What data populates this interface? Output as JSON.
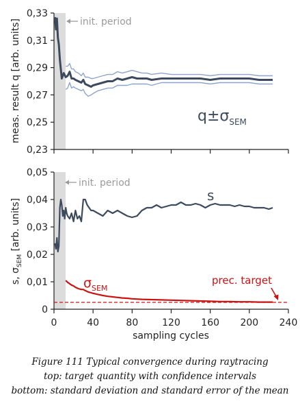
{
  "chart_data": [
    {
      "type": "line",
      "ylabel": "meas. result q [arb. units]",
      "xlim": [
        0,
        240
      ],
      "ylim": [
        0.23,
        0.33
      ],
      "x_ticks": [
        0,
        40,
        80,
        120,
        160,
        200,
        240
      ],
      "y_ticks": [
        0.23,
        0.25,
        0.27,
        0.29,
        0.31,
        0.33
      ],
      "y_tick_labels": [
        "0,23",
        "0,25",
        "0,27",
        "0,29",
        "0,31",
        "0,33"
      ],
      "shaded_region": {
        "x": [
          0,
          12
        ],
        "label": "init. period"
      },
      "series_label": "q±σSEM",
      "series_label_parts": {
        "base": "q±σ",
        "sub": "SEM"
      },
      "series": [
        {
          "role": "mean",
          "color": "#3d4a5e",
          "x": [
            1,
            2,
            3,
            4,
            5,
            6,
            7,
            8,
            10,
            12,
            14,
            16,
            18,
            20,
            22,
            25,
            28,
            30,
            32,
            35,
            38,
            40,
            45,
            50,
            55,
            60,
            65,
            70,
            75,
            80,
            85,
            90,
            95,
            100,
            110,
            120,
            130,
            140,
            150,
            160,
            170,
            180,
            190,
            200,
            210,
            220,
            224
          ],
          "y": [
            0.327,
            0.318,
            0.326,
            0.312,
            0.307,
            0.296,
            0.289,
            0.282,
            0.286,
            0.283,
            0.284,
            0.287,
            0.282,
            0.282,
            0.281,
            0.28,
            0.279,
            0.281,
            0.278,
            0.277,
            0.276,
            0.277,
            0.278,
            0.279,
            0.28,
            0.28,
            0.282,
            0.281,
            0.282,
            0.283,
            0.282,
            0.282,
            0.282,
            0.281,
            0.282,
            0.282,
            0.282,
            0.282,
            0.282,
            0.281,
            0.282,
            0.282,
            0.282,
            0.282,
            0.281,
            0.281,
            0.281
          ]
        },
        {
          "role": "upper",
          "color": "#8ea4cc",
          "x": [
            12,
            14,
            16,
            18,
            20,
            22,
            25,
            28,
            30,
            32,
            35,
            38,
            40,
            45,
            50,
            55,
            60,
            65,
            70,
            75,
            80,
            85,
            90,
            95,
            100,
            110,
            120,
            130,
            140,
            150,
            160,
            170,
            180,
            190,
            200,
            210,
            220,
            224
          ],
          "y": [
            0.291,
            0.291,
            0.293,
            0.289,
            0.289,
            0.287,
            0.286,
            0.284,
            0.286,
            0.283,
            0.283,
            0.282,
            0.282,
            0.283,
            0.284,
            0.285,
            0.285,
            0.287,
            0.286,
            0.287,
            0.288,
            0.287,
            0.286,
            0.286,
            0.285,
            0.286,
            0.285,
            0.285,
            0.285,
            0.285,
            0.284,
            0.285,
            0.285,
            0.285,
            0.285,
            0.284,
            0.284,
            0.284
          ]
        },
        {
          "role": "lower",
          "color": "#8ea4cc",
          "x": [
            12,
            14,
            16,
            18,
            20,
            22,
            25,
            28,
            30,
            32,
            35,
            38,
            40,
            45,
            50,
            55,
            60,
            65,
            70,
            75,
            80,
            85,
            90,
            95,
            100,
            110,
            120,
            130,
            140,
            150,
            160,
            170,
            180,
            190,
            200,
            210,
            220,
            224
          ],
          "y": [
            0.274,
            0.275,
            0.279,
            0.275,
            0.276,
            0.275,
            0.274,
            0.273,
            0.274,
            0.271,
            0.269,
            0.27,
            0.271,
            0.273,
            0.274,
            0.275,
            0.275,
            0.277,
            0.277,
            0.277,
            0.278,
            0.278,
            0.278,
            0.278,
            0.277,
            0.279,
            0.279,
            0.279,
            0.279,
            0.279,
            0.278,
            0.279,
            0.279,
            0.279,
            0.279,
            0.278,
            0.278,
            0.278
          ]
        }
      ]
    },
    {
      "type": "line",
      "xlabel": "sampling cycles",
      "ylabel": "s, σSEM [arb. units]",
      "ylabel_parts": {
        "pre": "s, σ",
        "sub": "SEM",
        "post": " [arb. units]"
      },
      "xlim": [
        0,
        240
      ],
      "ylim": [
        0,
        0.05
      ],
      "x_ticks": [
        0,
        40,
        80,
        120,
        160,
        200,
        240
      ],
      "x_tick_labels": [
        "0",
        "40",
        "80",
        "120",
        "160",
        "200",
        "240"
      ],
      "y_ticks": [
        0,
        0.01,
        0.02,
        0.03,
        0.04,
        0.05
      ],
      "y_tick_labels": [
        "0",
        "0,01",
        "0,02",
        "0,03",
        "0,04",
        "0,05"
      ],
      "shaded_region": {
        "x": [
          0,
          12
        ],
        "label": "init. period"
      },
      "target_line": {
        "y": 0.0025,
        "label": "prec. target",
        "color": "#cc1111"
      },
      "series": [
        {
          "name": "s",
          "color": "#3d4a5e",
          "x": [
            1,
            2,
            3,
            4,
            5,
            6,
            7,
            8,
            9,
            10,
            11,
            12,
            13,
            14,
            16,
            18,
            20,
            22,
            24,
            26,
            28,
            30,
            32,
            34,
            36,
            38,
            40,
            45,
            50,
            55,
            60,
            65,
            70,
            75,
            80,
            85,
            90,
            95,
            100,
            105,
            110,
            115,
            120,
            125,
            130,
            135,
            140,
            145,
            150,
            155,
            160,
            165,
            170,
            175,
            180,
            185,
            190,
            195,
            200,
            205,
            210,
            215,
            220,
            224
          ],
          "y": [
            0.024,
            0.022,
            0.026,
            0.021,
            0.023,
            0.037,
            0.04,
            0.038,
            0.034,
            0.036,
            0.033,
            0.037,
            0.035,
            0.034,
            0.033,
            0.035,
            0.032,
            0.036,
            0.033,
            0.034,
            0.032,
            0.04,
            0.04,
            0.038,
            0.037,
            0.036,
            0.036,
            0.035,
            0.034,
            0.036,
            0.035,
            0.036,
            0.035,
            0.034,
            0.0335,
            0.034,
            0.036,
            0.037,
            0.037,
            0.038,
            0.037,
            0.0375,
            0.038,
            0.038,
            0.039,
            0.038,
            0.038,
            0.0385,
            0.038,
            0.037,
            0.038,
            0.0385,
            0.038,
            0.038,
            0.038,
            0.0375,
            0.038,
            0.0375,
            0.0375,
            0.037,
            0.037,
            0.037,
            0.0365,
            0.037
          ]
        },
        {
          "name": "σSEM",
          "name_parts": {
            "base": "σ",
            "sub": "SEM"
          },
          "color": "#cc1111",
          "x": [
            12,
            14,
            16,
            18,
            20,
            22,
            25,
            28,
            30,
            32,
            35,
            40,
            45,
            50,
            55,
            60,
            65,
            70,
            75,
            80,
            90,
            100,
            110,
            120,
            130,
            140,
            150,
            160,
            170,
            180,
            190,
            200,
            210,
            220,
            224
          ],
          "y": [
            0.0105,
            0.0098,
            0.0093,
            0.0088,
            0.0085,
            0.008,
            0.0075,
            0.0072,
            0.0072,
            0.0068,
            0.0063,
            0.0058,
            0.0054,
            0.005,
            0.0047,
            0.0045,
            0.0043,
            0.0041,
            0.004,
            0.0038,
            0.0036,
            0.0035,
            0.0034,
            0.0033,
            0.0032,
            0.0031,
            0.003,
            0.0029,
            0.0028,
            0.0028,
            0.0027,
            0.0027,
            0.0026,
            0.0026,
            0.0026
          ]
        }
      ]
    }
  ],
  "caption": {
    "line1": "Figure 111 Typical convergence during raytracing",
    "line2": "top: target quantity with confidence intervals",
    "line3": "bottom: standard deviation and standard error of the mean"
  }
}
